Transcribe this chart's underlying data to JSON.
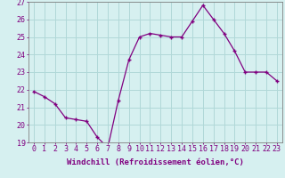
{
  "x": [
    0,
    1,
    2,
    3,
    4,
    5,
    6,
    7,
    8,
    9,
    10,
    11,
    12,
    13,
    14,
    15,
    16,
    17,
    18,
    19,
    20,
    21,
    22,
    23
  ],
  "y": [
    21.9,
    21.6,
    21.2,
    20.4,
    20.3,
    20.2,
    19.3,
    18.7,
    21.4,
    23.7,
    25.0,
    25.2,
    25.1,
    25.0,
    25.0,
    25.9,
    26.8,
    26.0,
    25.2,
    24.2,
    23.0,
    23.0,
    23.0,
    22.5
  ],
  "line_color": "#800080",
  "marker": "+",
  "marker_size": 3.5,
  "bg_color": "#d6f0f0",
  "grid_color": "#b0d8d8",
  "xlabel": "Windchill (Refroidissement éolien,°C)",
  "xlabel_fontsize": 6.5,
  "tick_fontsize": 6.0,
  "ylim": [
    19,
    27
  ],
  "yticks": [
    19,
    20,
    21,
    22,
    23,
    24,
    25,
    26,
    27
  ],
  "xticks": [
    0,
    1,
    2,
    3,
    4,
    5,
    6,
    7,
    8,
    9,
    10,
    11,
    12,
    13,
    14,
    15,
    16,
    17,
    18,
    19,
    20,
    21,
    22,
    23
  ],
  "line_width": 0.9,
  "spine_color": "#808080"
}
